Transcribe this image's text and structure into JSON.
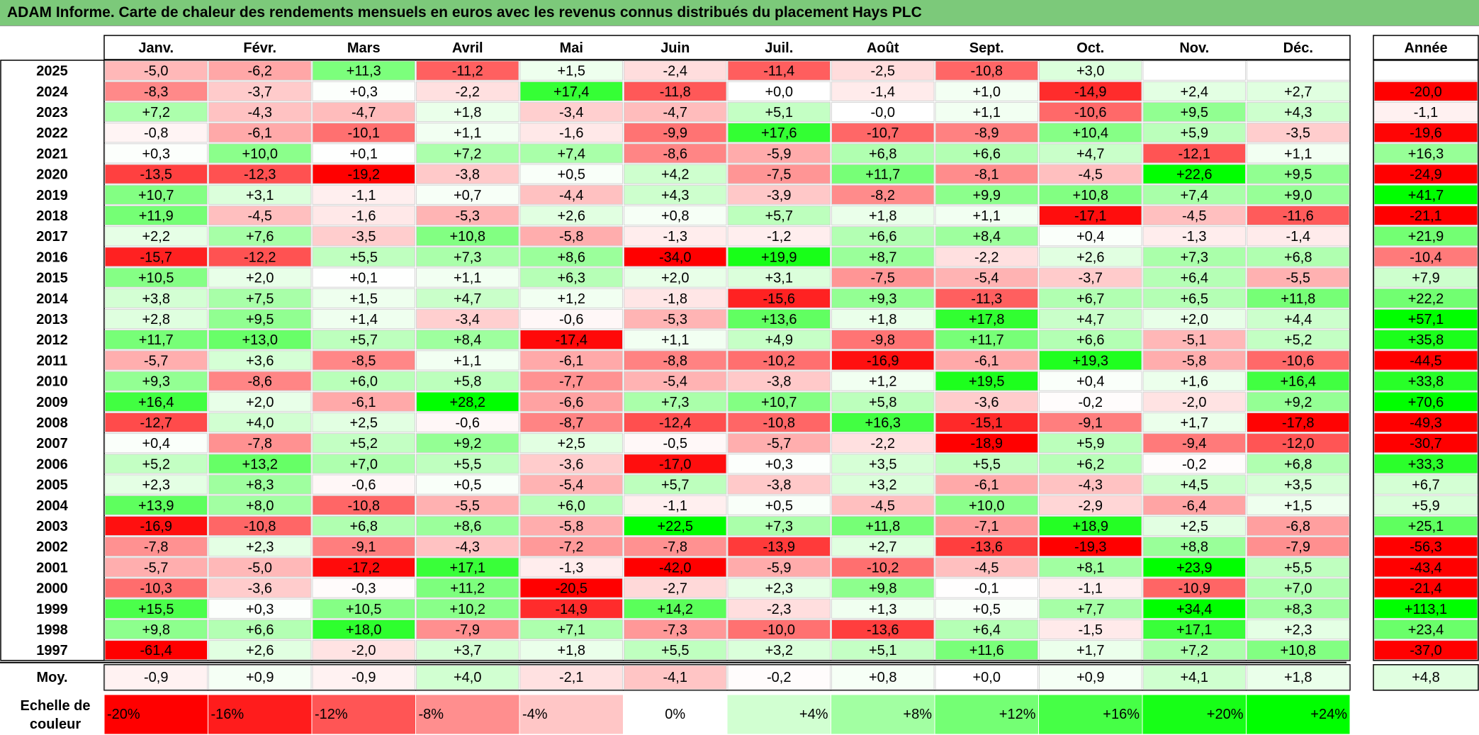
{
  "title": "ADAM Informe. Carte de chaleur des rendements mensuels en euros avec les revenus connus distribués du placement Hays PLC",
  "chart_data": {
    "type": "heatmap",
    "columns": [
      "Janv.",
      "Févr.",
      "Mars",
      "Avril",
      "Mai",
      "Juin",
      "Juil.",
      "Août",
      "Sept.",
      "Oct.",
      "Nov.",
      "Déc."
    ],
    "year_column": "Année",
    "rows": [
      {
        "year": "2025",
        "values": [
          "-5,0",
          "-6,2",
          "+11,3",
          "-11,2",
          "+1,5",
          "-2,4",
          "-11,4",
          "-2,5",
          "-10,8",
          "+3,0",
          "",
          ""
        ],
        "annual": ""
      },
      {
        "year": "2024",
        "values": [
          "-8,3",
          "-3,7",
          "+0,3",
          "-2,2",
          "+17,4",
          "-11,8",
          "+0,0",
          "-1,4",
          "+1,0",
          "-14,9",
          "+2,4",
          "+2,7"
        ],
        "annual": "-20,0"
      },
      {
        "year": "2023",
        "values": [
          "+7,2",
          "-4,3",
          "-4,7",
          "+1,8",
          "-3,4",
          "-4,7",
          "+5,1",
          "-0,0",
          "+1,1",
          "-10,6",
          "+9,5",
          "+4,3"
        ],
        "annual": "-1,1"
      },
      {
        "year": "2022",
        "values": [
          "-0,8",
          "-6,1",
          "-10,1",
          "+1,1",
          "-1,6",
          "-9,9",
          "+17,6",
          "-10,7",
          "-8,9",
          "+10,4",
          "+5,9",
          "-3,5"
        ],
        "annual": "-19,6"
      },
      {
        "year": "2021",
        "values": [
          "+0,3",
          "+10,0",
          "+0,1",
          "+7,2",
          "+7,4",
          "-8,6",
          "-5,9",
          "+6,8",
          "+6,6",
          "+4,7",
          "-12,1",
          "+1,1"
        ],
        "annual": "+16,3"
      },
      {
        "year": "2020",
        "values": [
          "-13,5",
          "-12,3",
          "-19,2",
          "-3,8",
          "+0,5",
          "+4,2",
          "-7,5",
          "+11,7",
          "-8,1",
          "-4,5",
          "+22,6",
          "+9,5"
        ],
        "annual": "-24,9"
      },
      {
        "year": "2019",
        "values": [
          "+10,7",
          "+3,1",
          "-1,1",
          "+0,7",
          "-4,4",
          "+4,3",
          "-3,9",
          "-8,2",
          "+9,9",
          "+10,8",
          "+7,4",
          "+9,0"
        ],
        "annual": "+41,7"
      },
      {
        "year": "2018",
        "values": [
          "+11,9",
          "-4,5",
          "-1,6",
          "-5,3",
          "+2,6",
          "+0,8",
          "+5,7",
          "+1,8",
          "+1,1",
          "-17,1",
          "-4,5",
          "-11,6"
        ],
        "annual": "-21,1"
      },
      {
        "year": "2017",
        "values": [
          "+2,2",
          "+7,6",
          "-3,5",
          "+10,8",
          "-5,8",
          "-1,3",
          "-1,2",
          "+6,6",
          "+8,4",
          "+0,4",
          "-1,3",
          "-1,4"
        ],
        "annual": "+21,9"
      },
      {
        "year": "2016",
        "values": [
          "-15,7",
          "-12,2",
          "+5,5",
          "+7,3",
          "+8,6",
          "-34,0",
          "+19,9",
          "+8,7",
          "-2,2",
          "+2,6",
          "+7,3",
          "+6,8"
        ],
        "annual": "-10,4"
      },
      {
        "year": "2015",
        "values": [
          "+10,5",
          "+2,0",
          "+0,1",
          "+1,1",
          "+6,3",
          "+2,0",
          "+3,1",
          "-7,5",
          "-5,4",
          "-3,7",
          "+6,4",
          "-5,5"
        ],
        "annual": "+7,9"
      },
      {
        "year": "2014",
        "values": [
          "+3,8",
          "+7,5",
          "+1,5",
          "+4,7",
          "+1,2",
          "-1,8",
          "-15,6",
          "+9,3",
          "-11,3",
          "+6,7",
          "+6,5",
          "+11,8"
        ],
        "annual": "+22,2"
      },
      {
        "year": "2013",
        "values": [
          "+2,8",
          "+9,5",
          "+1,4",
          "-3,4",
          "-0,6",
          "-5,3",
          "+13,6",
          "+1,8",
          "+17,8",
          "+4,7",
          "+2,0",
          "+4,4"
        ],
        "annual": "+57,1"
      },
      {
        "year": "2012",
        "values": [
          "+11,7",
          "+13,0",
          "+5,7",
          "+8,4",
          "-17,4",
          "+1,1",
          "+4,9",
          "-9,8",
          "+11,7",
          "+6,6",
          "-5,1",
          "+5,2"
        ],
        "annual": "+35,8"
      },
      {
        "year": "2011",
        "values": [
          "-5,7",
          "+3,6",
          "-8,5",
          "+1,1",
          "-6,1",
          "-8,8",
          "-10,2",
          "-16,9",
          "-6,1",
          "+19,3",
          "-5,8",
          "-10,6"
        ],
        "annual": "-44,5"
      },
      {
        "year": "2010",
        "values": [
          "+9,3",
          "-8,6",
          "+6,0",
          "+5,8",
          "-7,7",
          "-5,4",
          "-3,8",
          "+1,2",
          "+19,5",
          "+0,4",
          "+1,6",
          "+16,4"
        ],
        "annual": "+33,8"
      },
      {
        "year": "2009",
        "values": [
          "+16,4",
          "+2,0",
          "-6,1",
          "+28,2",
          "-6,6",
          "+7,3",
          "+10,7",
          "+5,8",
          "-3,6",
          "-0,2",
          "-2,0",
          "+9,2"
        ],
        "annual": "+70,6"
      },
      {
        "year": "2008",
        "values": [
          "-12,7",
          "+4,0",
          "+2,5",
          "-0,6",
          "-8,7",
          "-12,4",
          "-10,8",
          "+16,3",
          "-15,1",
          "-9,1",
          "+1,7",
          "-17,8"
        ],
        "annual": "-49,3"
      },
      {
        "year": "2007",
        "values": [
          "+0,4",
          "-7,8",
          "+5,2",
          "+9,2",
          "+2,5",
          "-0,5",
          "-5,7",
          "-2,2",
          "-18,9",
          "+5,9",
          "-9,4",
          "-12,0"
        ],
        "annual": "-30,7"
      },
      {
        "year": "2006",
        "values": [
          "+5,2",
          "+13,2",
          "+7,0",
          "+5,5",
          "-3,6",
          "-17,0",
          "+0,3",
          "+3,5",
          "+5,5",
          "+6,2",
          "-0,2",
          "+6,8"
        ],
        "annual": "+33,3"
      },
      {
        "year": "2005",
        "values": [
          "+2,3",
          "+8,3",
          "-0,6",
          "+0,5",
          "-5,4",
          "+5,7",
          "-3,8",
          "+3,2",
          "-6,1",
          "-4,3",
          "+4,5",
          "+3,5"
        ],
        "annual": "+6,7"
      },
      {
        "year": "2004",
        "values": [
          "+13,9",
          "+8,0",
          "-10,8",
          "-5,5",
          "+6,0",
          "-1,1",
          "+0,5",
          "-4,5",
          "+10,0",
          "-2,9",
          "-6,4",
          "+1,5"
        ],
        "annual": "+5,9"
      },
      {
        "year": "2003",
        "values": [
          "-16,9",
          "-10,8",
          "+6,8",
          "+8,6",
          "-5,8",
          "+22,5",
          "+7,3",
          "+11,8",
          "-7,1",
          "+18,9",
          "+2,5",
          "-6,8"
        ],
        "annual": "+25,1"
      },
      {
        "year": "2002",
        "values": [
          "-7,8",
          "+2,3",
          "-9,1",
          "-4,3",
          "-7,2",
          "-7,8",
          "-13,9",
          "+2,7",
          "-13,6",
          "-19,3",
          "+8,8",
          "-7,9"
        ],
        "annual": "-56,3"
      },
      {
        "year": "2001",
        "values": [
          "-5,7",
          "-5,0",
          "-17,2",
          "+17,1",
          "-1,3",
          "-42,0",
          "-5,9",
          "-10,2",
          "-4,5",
          "+8,1",
          "+23,9",
          "+5,5"
        ],
        "annual": "-43,4"
      },
      {
        "year": "2000",
        "values": [
          "-10,3",
          "-3,6",
          "-0,3",
          "+11,2",
          "-20,5",
          "-2,7",
          "+2,3",
          "+9,8",
          "-0,1",
          "-1,1",
          "-10,9",
          "+7,0"
        ],
        "annual": "-21,4"
      },
      {
        "year": "1999",
        "values": [
          "+15,5",
          "+0,3",
          "+10,5",
          "+10,2",
          "-14,9",
          "+14,2",
          "-2,3",
          "+1,3",
          "+0,5",
          "+7,7",
          "+34,4",
          "+8,3"
        ],
        "annual": "+113,1"
      },
      {
        "year": "1998",
        "values": [
          "+9,8",
          "+6,6",
          "+18,0",
          "-7,9",
          "+7,1",
          "-7,3",
          "-10,0",
          "-13,6",
          "+6,4",
          "-1,5",
          "+17,1",
          "+2,3"
        ],
        "annual": "+23,4"
      },
      {
        "year": "1997",
        "values": [
          "-61,4",
          "+2,6",
          "-2,0",
          "+3,7",
          "+1,8",
          "+5,5",
          "+3,2",
          "+5,1",
          "+11,6",
          "+1,7",
          "+7,2",
          "+10,8"
        ],
        "annual": "-37,0"
      }
    ],
    "average_row": {
      "label": "Moy.",
      "values": [
        "-0,9",
        "+0,9",
        "-0,9",
        "+4,0",
        "-2,1",
        "-4,1",
        "-0,2",
        "+0,8",
        "+0,0",
        "+0,9",
        "+4,1",
        "+1,8"
      ],
      "annual": "+4,8"
    },
    "color_scale": {
      "label_line1": "Echelle de",
      "label_line2": "couleur",
      "stops": [
        "-20%",
        "-16%",
        "-12%",
        "-8%",
        "-4%",
        "0%",
        "+4%",
        "+8%",
        "+12%",
        "+16%",
        "+20%",
        "+24%"
      ],
      "negative_color": "#ff0000",
      "neutral_color": "#ffffff",
      "positive_color": "#00ff00"
    }
  }
}
